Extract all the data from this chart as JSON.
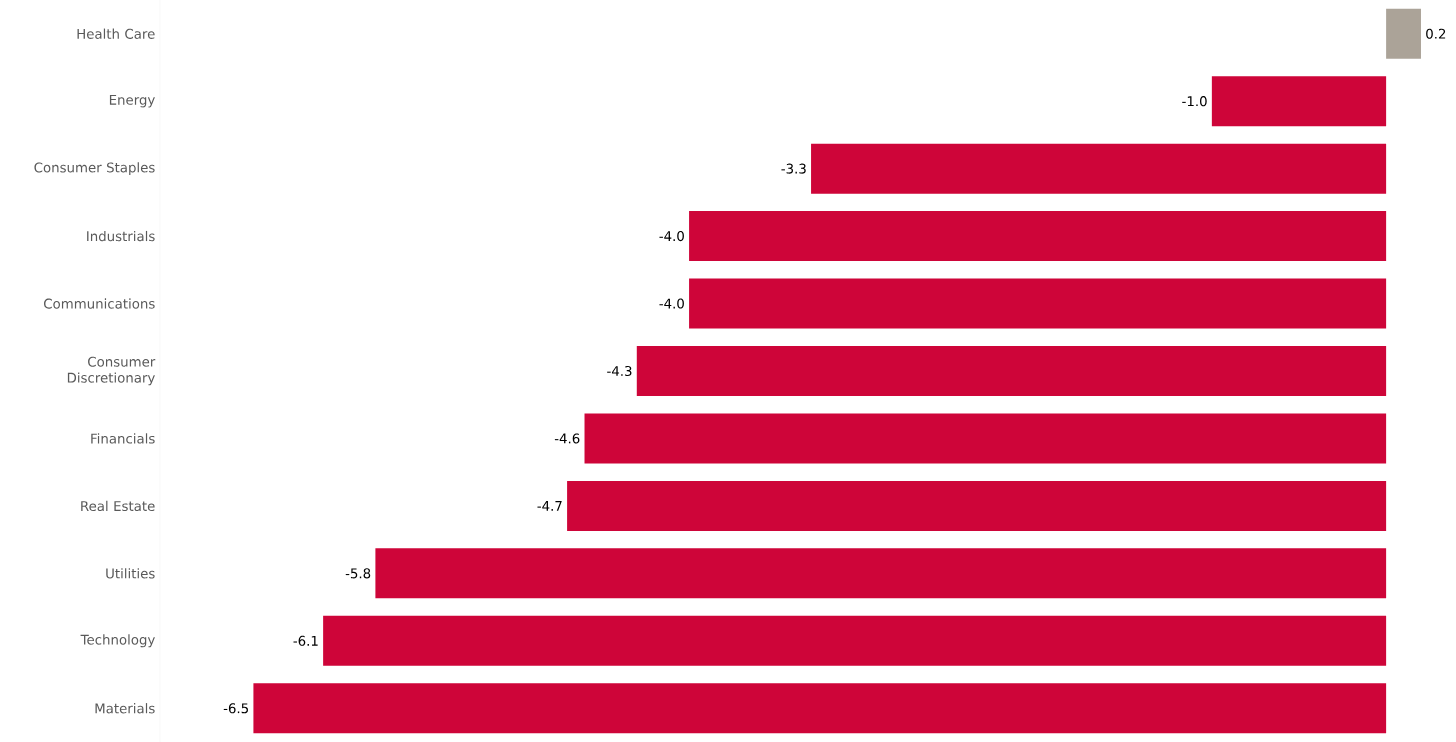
{
  "chart_data": {
    "type": "bar",
    "orientation": "horizontal",
    "categories": [
      "Health Care",
      "Energy",
      "Consumer Staples",
      "Industrials",
      "Communications",
      "Consumer Discretionary",
      "Financials",
      "Real Estate",
      "Utilities",
      "Technology",
      "Materials"
    ],
    "values": [
      0.2,
      -1.0,
      -3.3,
      -4.0,
      -4.0,
      -4.3,
      -4.6,
      -4.7,
      -5.8,
      -6.1,
      -6.5
    ],
    "value_labels": [
      "0.2",
      "-1.0",
      "-3.3",
      "-4.0",
      "-4.0",
      "-4.3",
      "-4.6",
      "-4.7",
      "-5.8",
      "-6.1",
      "-6.5"
    ],
    "colors": [
      "#aba398",
      "#ce0539",
      "#ce0539",
      "#ce0539",
      "#ce0539",
      "#ce0539",
      "#ce0539",
      "#ce0539",
      "#ce0539",
      "#ce0539",
      "#ce0539"
    ]
  }
}
